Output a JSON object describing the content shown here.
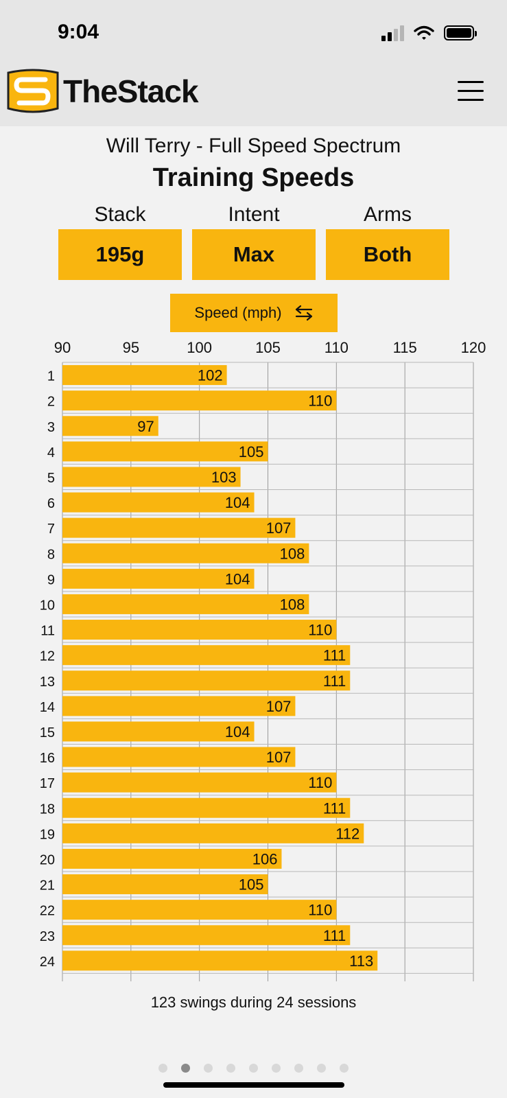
{
  "status": {
    "time": "9:04"
  },
  "header": {
    "brand": "TheStack",
    "logo_icon": "stack-logo-icon",
    "menu_icon": "hamburger-menu-icon"
  },
  "page": {
    "subtitle": "Will Terry - Full Speed Spectrum",
    "title": "Training Speeds"
  },
  "filters": [
    {
      "label": "Stack",
      "value": "195g"
    },
    {
      "label": "Intent",
      "value": "Max"
    },
    {
      "label": "Arms",
      "value": "Both"
    }
  ],
  "metric_toggle": {
    "label": "Speed (mph)",
    "icon": "swap-arrows-icon"
  },
  "chart_data": {
    "type": "bar",
    "orientation": "horizontal",
    "categories": [
      "1",
      "2",
      "3",
      "4",
      "5",
      "6",
      "7",
      "8",
      "9",
      "10",
      "11",
      "12",
      "13",
      "14",
      "15",
      "16",
      "17",
      "18",
      "19",
      "20",
      "21",
      "22",
      "23",
      "24"
    ],
    "values": [
      102,
      110,
      97,
      105,
      103,
      104,
      107,
      108,
      104,
      108,
      110,
      111,
      111,
      107,
      104,
      107,
      110,
      111,
      112,
      106,
      105,
      110,
      111,
      113
    ],
    "xlim": [
      90,
      120
    ],
    "xticks": [
      90,
      95,
      100,
      105,
      110,
      115,
      120
    ],
    "axis_position": "top",
    "grid": true,
    "bar_color": "#f9b50f"
  },
  "summary": "123 swings during 24 sessions",
  "pager": {
    "count": 9,
    "active": 1
  }
}
